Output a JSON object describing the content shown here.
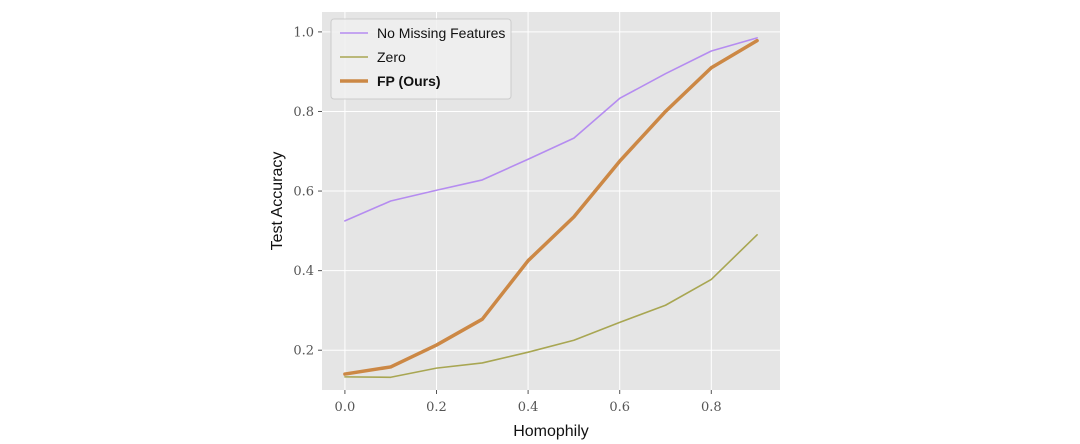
{
  "chart_data": {
    "type": "line",
    "xlabel": "Homophily",
    "ylabel": "Test Accuracy",
    "xlim": [
      -0.05,
      0.95
    ],
    "ylim": [
      0.1,
      1.05
    ],
    "x": [
      0.0,
      0.1,
      0.2,
      0.3,
      0.4,
      0.5,
      0.6,
      0.7,
      0.8,
      0.9
    ],
    "xticks": [
      0.0,
      0.2,
      0.4,
      0.6,
      0.8
    ],
    "xtick_labels": [
      "0.0",
      "0.2",
      "0.4",
      "0.6",
      "0.8"
    ],
    "yticks": [
      0.2,
      0.4,
      0.6,
      0.8,
      1.0
    ],
    "ytick_labels": [
      "0.2",
      "0.4",
      "0.6",
      "0.8",
      "1.0"
    ],
    "grid": true,
    "legend_position": "top-left",
    "series": [
      {
        "name": "No Missing Features",
        "color": "#b58cf0",
        "bold": false,
        "values": [
          0.525,
          0.575,
          0.602,
          0.628,
          0.68,
          0.733,
          0.833,
          0.895,
          0.952,
          0.985
        ]
      },
      {
        "name": "Zero",
        "color": "#a8a652",
        "bold": false,
        "values": [
          0.133,
          0.132,
          0.155,
          0.168,
          0.195,
          0.225,
          0.27,
          0.313,
          0.378,
          0.49
        ]
      },
      {
        "name": "FP (Ours)",
        "color": "#cc8845",
        "bold": true,
        "values": [
          0.14,
          0.158,
          0.213,
          0.278,
          0.425,
          0.535,
          0.675,
          0.8,
          0.91,
          0.978
        ]
      }
    ]
  }
}
